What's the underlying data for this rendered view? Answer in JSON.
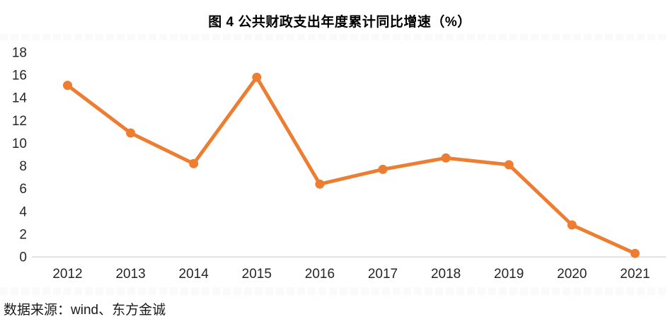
{
  "page": {
    "background": "#ffffff"
  },
  "chart_data": {
    "type": "line",
    "title": "图 4  公共财政支出年度累计同比增速（%）",
    "categories": [
      "2012",
      "2013",
      "2014",
      "2015",
      "2016",
      "2017",
      "2018",
      "2019",
      "2020",
      "2021"
    ],
    "series": [
      {
        "name": "公共财政支出年度累计同比增速",
        "values": [
          15.1,
          10.9,
          8.2,
          15.8,
          6.4,
          7.7,
          8.7,
          8.1,
          2.8,
          0.3
        ]
      }
    ],
    "xlabel": "",
    "ylabel": "",
    "ylim": [
      0,
      18
    ],
    "y_ticks": [
      0,
      2,
      4,
      6,
      8,
      10,
      12,
      14,
      16,
      18
    ],
    "grid": "off",
    "legend": "none",
    "line_color": "#ED7D31",
    "marker": "circle",
    "axis_line_color": "#D9D9D9",
    "tick_label_color": "#262626"
  },
  "footer": {
    "source": "数据来源：wind、东方金诚"
  }
}
